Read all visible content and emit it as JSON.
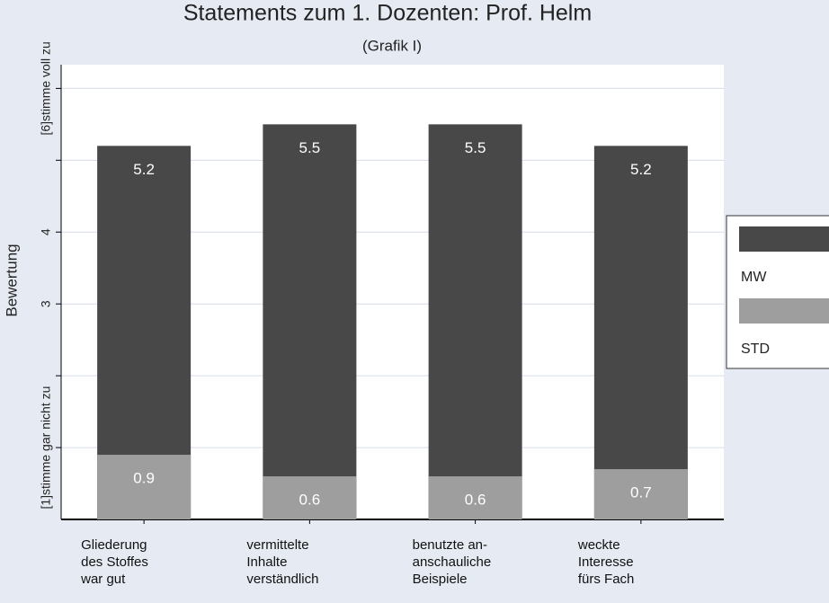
{
  "chart_data": {
    "type": "bar",
    "title": "Statements zum 1. Dozenten: Prof. Helm",
    "subtitle": "(Grafik I)",
    "y_label": "Bewertung",
    "categories": [
      "Gliederung\ndes Stoffes\nwar gut",
      "vermittelte\nInhalte\nverständlich",
      "benutzte an-\nanschauliche\nBeispiele",
      "weckte\nInteresse\nfürs Fach"
    ],
    "series": [
      {
        "name": "MW",
        "color": "#484848",
        "values": [
          5.2,
          5.5,
          5.5,
          5.2
        ]
      },
      {
        "name": "STD",
        "color": "#9e9e9e",
        "values": [
          0.9,
          0.6,
          0.6,
          0.7
        ]
      }
    ],
    "ylim": [
      0,
      6.33
    ],
    "yticks": [
      {
        "value": 1,
        "label": "[1]stimme gar nicht zu"
      },
      3,
      4,
      {
        "value": 6,
        "label": "[6]stimme voll zu"
      }
    ],
    "minor_yticks": [
      2,
      5
    ],
    "grid": true,
    "legend": "right"
  }
}
